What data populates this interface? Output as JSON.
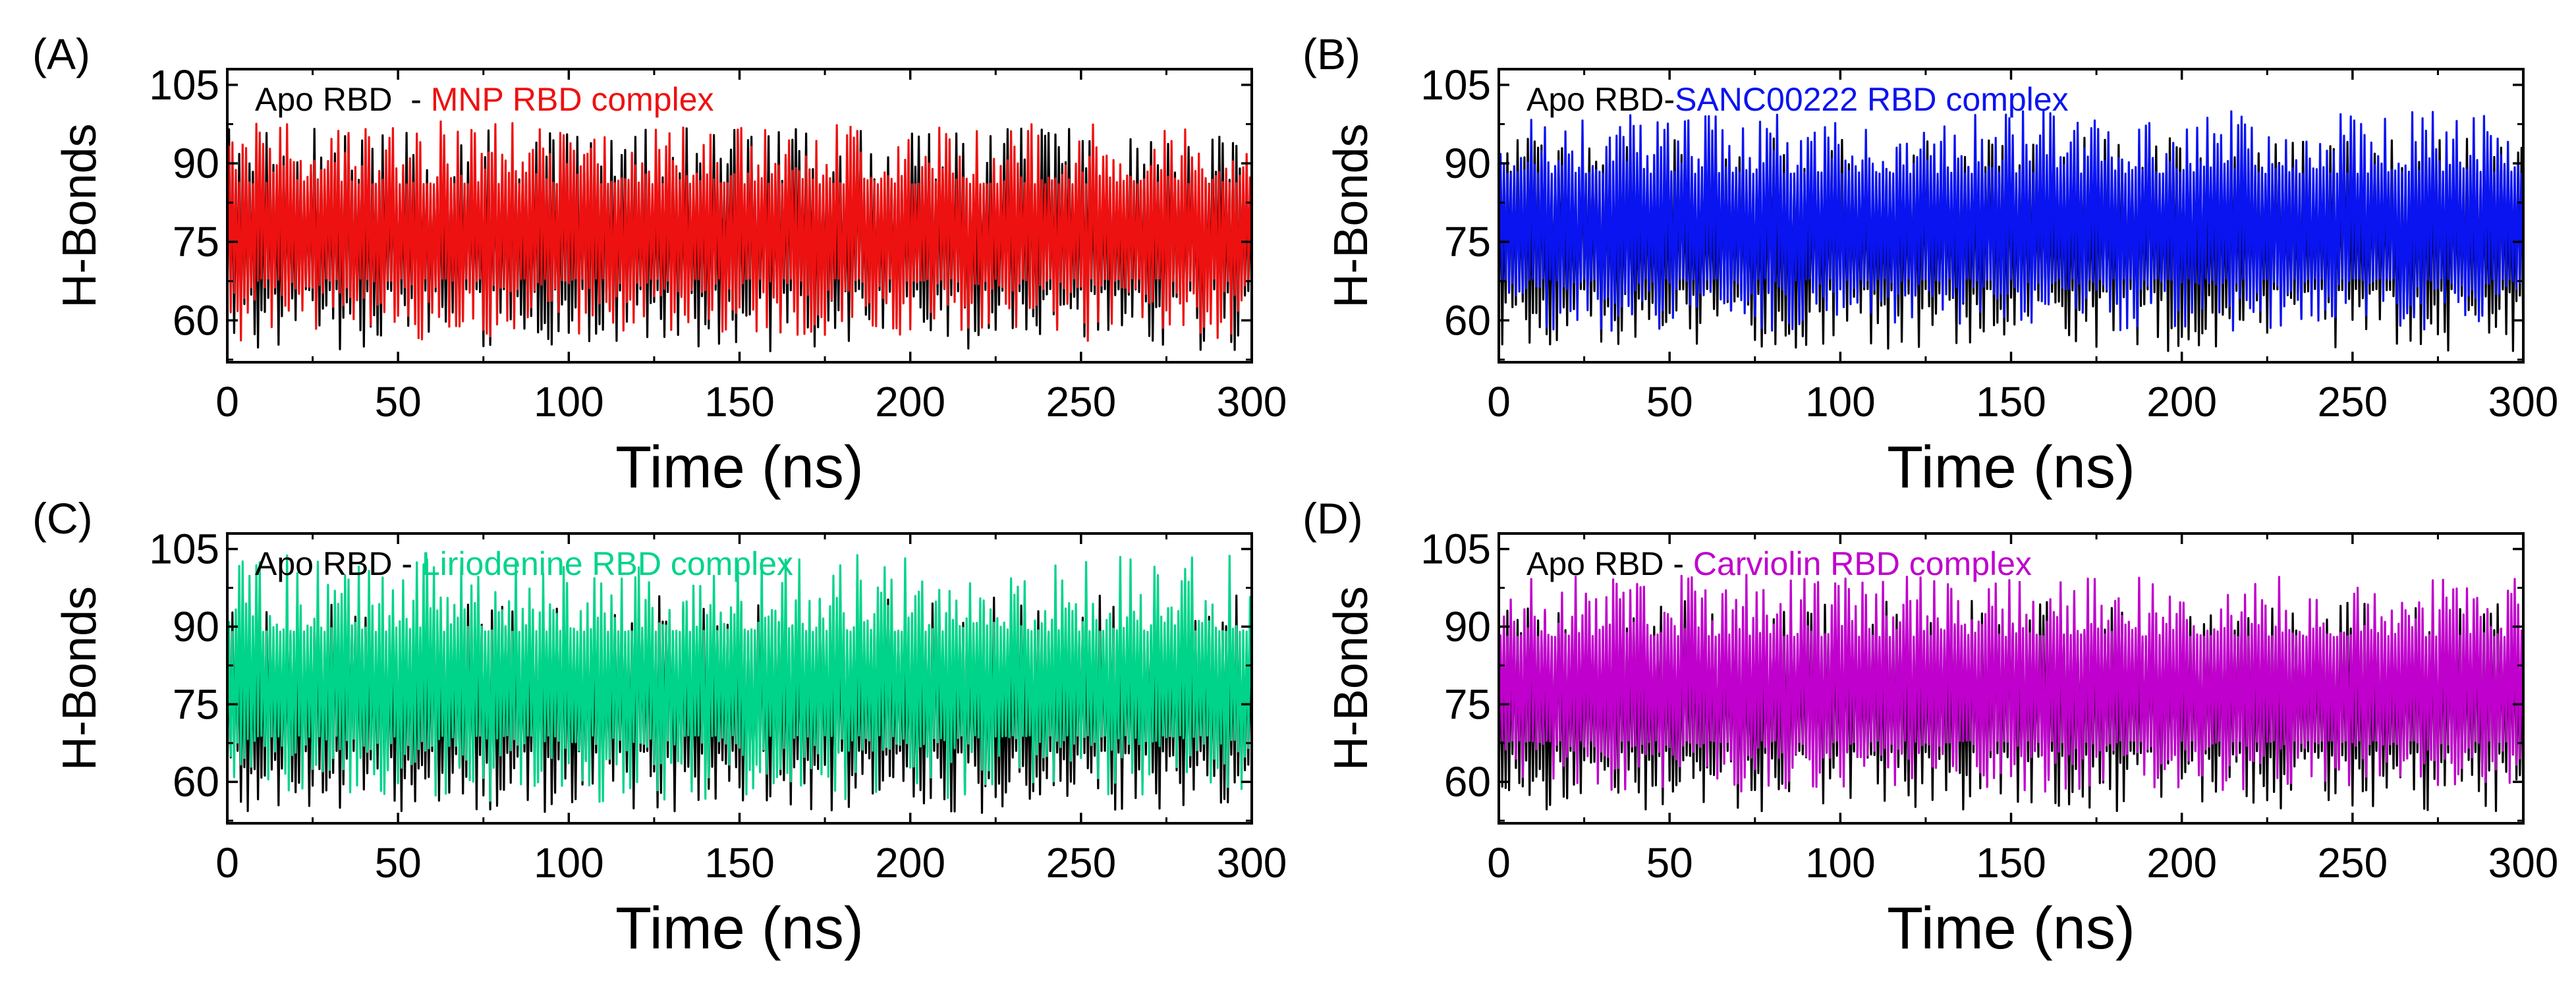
{
  "chart_data": [
    {
      "type": "line",
      "panel_label": "(A)",
      "xlabel": "Time (ns)",
      "ylabel": "H-Bonds",
      "xlim": [
        0,
        300
      ],
      "ylim": [
        52,
        108
      ],
      "xticks": [
        0,
        50,
        100,
        150,
        200,
        250,
        300
      ],
      "yticks": [
        60,
        75,
        90,
        105
      ],
      "legend": {
        "reference": "Apo RBD",
        "separator": "  - ",
        "complex": "MNP RBD complex",
        "placement": "top-left"
      },
      "series": [
        {
          "name": "Apo RBD",
          "color": "#000000",
          "mean": 75,
          "spread_low": [
            54,
            66
          ],
          "spread_high": [
            84,
            97
          ],
          "sample_interval_ns": 0.5
        },
        {
          "name": "MNP RBD complex",
          "color": "#ee1111",
          "mean": 77,
          "spread_low": [
            56,
            68
          ],
          "spread_high": [
            86,
            98
          ],
          "sample_interval_ns": 0.5
        }
      ]
    },
    {
      "type": "line",
      "panel_label": "(B)",
      "xlabel": "Time (ns)",
      "ylabel": "H-Bonds",
      "xlim": [
        0,
        300
      ],
      "ylim": [
        52,
        108
      ],
      "xticks": [
        0,
        50,
        100,
        150,
        200,
        250,
        300
      ],
      "yticks": [
        60,
        75,
        90,
        105
      ],
      "legend": {
        "reference": "Apo RBD",
        "separator": "-",
        "complex": "SANC00222 RBD complex",
        "placement": "top-left"
      },
      "series": [
        {
          "name": "Apo RBD",
          "color": "#000000",
          "mean": 75,
          "spread_low": [
            54,
            66
          ],
          "spread_high": [
            84,
            95
          ],
          "sample_interval_ns": 0.5
        },
        {
          "name": "SANC00222 RBD complex",
          "color": "#0a14f0",
          "mean": 78,
          "spread_low": [
            58,
            68
          ],
          "spread_high": [
            88,
            100
          ],
          "sample_interval_ns": 0.5
        }
      ]
    },
    {
      "type": "line",
      "panel_label": "(C)",
      "xlabel": "Time (ns)",
      "ylabel": "H-Bonds",
      "xlim": [
        0,
        300
      ],
      "ylim": [
        52,
        108
      ],
      "xticks": [
        0,
        50,
        100,
        150,
        200,
        250,
        300
      ],
      "yticks": [
        60,
        75,
        90,
        105
      ],
      "legend": {
        "reference": "Apo RBD",
        "separator": " - ",
        "complex": "Liriodenine RBD complex",
        "placement": "top-left"
      },
      "series": [
        {
          "name": "Apo RBD",
          "color": "#000000",
          "mean": 75,
          "spread_low": [
            54,
            66
          ],
          "spread_high": [
            84,
            96
          ],
          "sample_interval_ns": 0.5
        },
        {
          "name": "Liriodenine RBD complex",
          "color": "#00d48a",
          "mean": 79,
          "spread_low": [
            56,
            69
          ],
          "spread_high": [
            89,
            104
          ],
          "sample_interval_ns": 0.5
        }
      ]
    },
    {
      "type": "line",
      "panel_label": "(D)",
      "xlabel": "Time (ns)",
      "ylabel": "H-Bonds",
      "xlim": [
        0,
        300
      ],
      "ylim": [
        52,
        108
      ],
      "xticks": [
        0,
        50,
        100,
        150,
        200,
        250,
        300
      ],
      "yticks": [
        60,
        75,
        90,
        105
      ],
      "legend": {
        "reference": "Apo RBD",
        "separator": " - ",
        "complex": "Carviolin RBD complex",
        "placement": "top-left"
      },
      "series": [
        {
          "name": "Apo RBD",
          "color": "#000000",
          "mean": 75,
          "spread_low": [
            54,
            66
          ],
          "spread_high": [
            84,
            95
          ],
          "sample_interval_ns": 0.5
        },
        {
          "name": "Carviolin RBD complex",
          "color": "#c000cc",
          "mean": 78,
          "spread_low": [
            58,
            68
          ],
          "spread_high": [
            88,
            100
          ],
          "sample_interval_ns": 0.5
        }
      ]
    }
  ]
}
